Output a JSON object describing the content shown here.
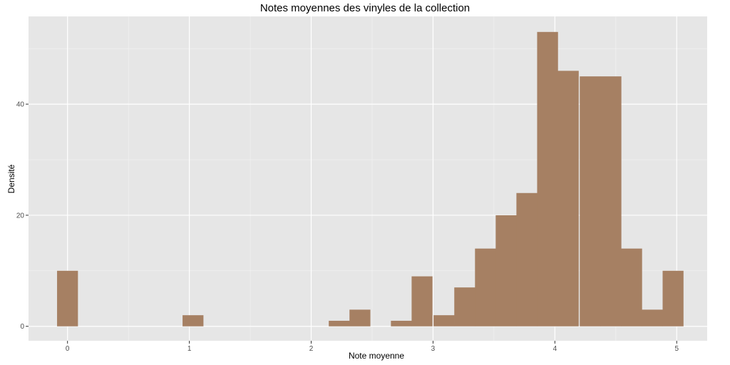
{
  "chart_data": {
    "type": "bar",
    "title": "Notes moyennes des vinyles de la collection",
    "xlabel": "Note moyenne",
    "ylabel": "Densité",
    "xlim": [
      -0.32,
      5.25
    ],
    "ylim": [
      -2.6,
      55.8
    ],
    "x_ticks": [
      0,
      1,
      2,
      3,
      4,
      5
    ],
    "y_ticks": [
      0,
      20,
      40
    ],
    "bin_width": 0.1714,
    "bins": [
      {
        "x": 0.0,
        "count": 10
      },
      {
        "x": 1.03,
        "count": 2
      },
      {
        "x": 2.23,
        "count": 1
      },
      {
        "x": 2.4,
        "count": 3
      },
      {
        "x": 2.74,
        "count": 1
      },
      {
        "x": 2.91,
        "count": 9
      },
      {
        "x": 3.09,
        "count": 2
      },
      {
        "x": 3.26,
        "count": 7
      },
      {
        "x": 3.43,
        "count": 14
      },
      {
        "x": 3.6,
        "count": 20
      },
      {
        "x": 3.77,
        "count": 24
      },
      {
        "x": 3.94,
        "count": 53
      },
      {
        "x": 4.11,
        "count": 46
      },
      {
        "x": 4.29,
        "count": 45
      },
      {
        "x": 4.46,
        "count": 45
      },
      {
        "x": 4.63,
        "count": 14
      },
      {
        "x": 4.8,
        "count": 3
      },
      {
        "x": 4.97,
        "count": 10
      }
    ],
    "bar_color": "#a68063",
    "panel_background": "#e6e6e6",
    "grid_color": "#ffffff",
    "grid": true,
    "legend": "none"
  }
}
